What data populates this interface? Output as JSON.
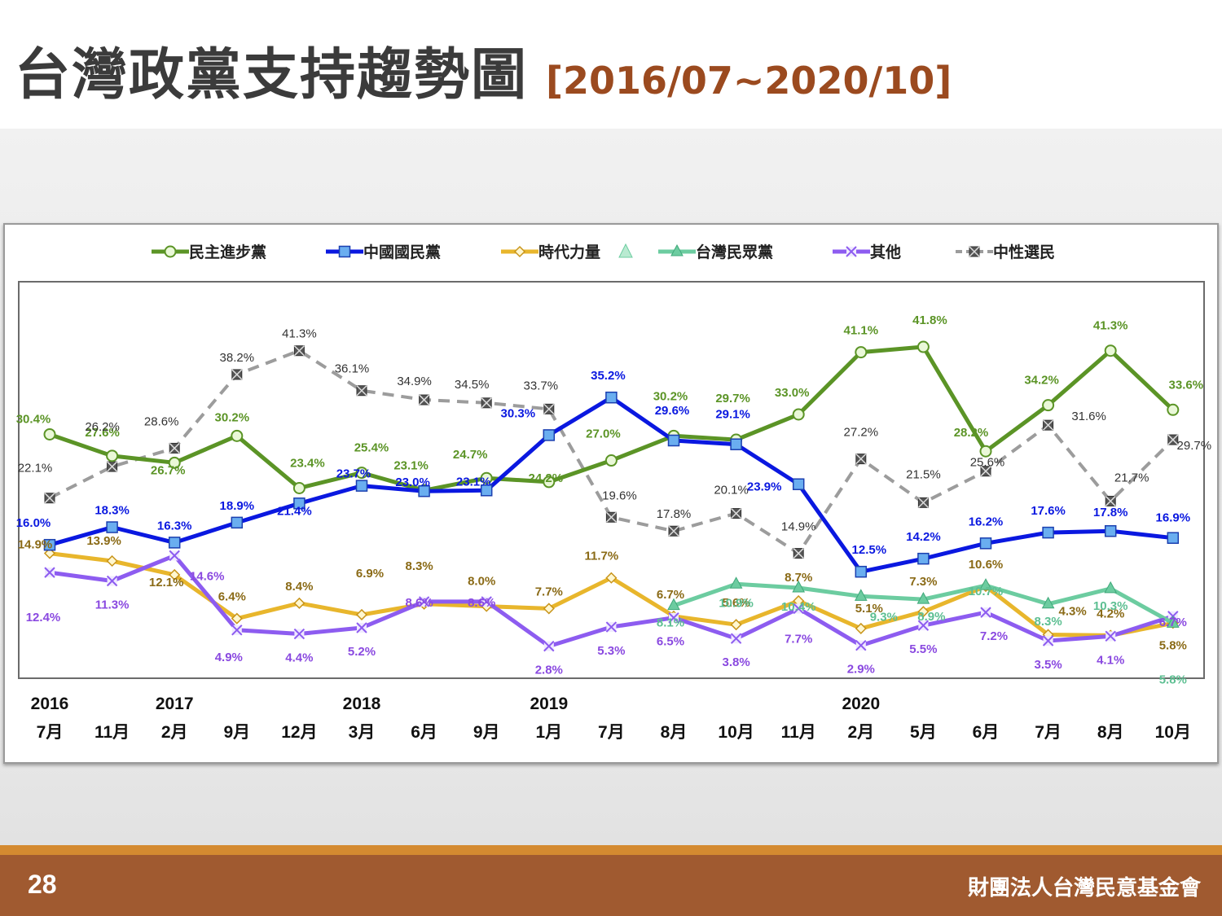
{
  "slide": {
    "title": "台灣政黨支持趨勢圖",
    "title_range": "[2016/07~2020/10]",
    "page_number": "28",
    "organization": "財團法人台灣民意基金會"
  },
  "chart_data": {
    "type": "line",
    "ylim": [
      0,
      47
    ],
    "grid": false,
    "legend_position": "top",
    "year_labels": [
      {
        "index": 0,
        "label": "2016"
      },
      {
        "index": 2,
        "label": "2017"
      },
      {
        "index": 5,
        "label": "2018"
      },
      {
        "index": 8,
        "label": "2019"
      },
      {
        "index": 13,
        "label": "2020"
      }
    ],
    "categories": [
      "7月",
      "11月",
      "2月",
      "9月",
      "12月",
      "3月",
      "6月",
      "9月",
      "1月",
      "7月",
      "8月",
      "10月",
      "11月",
      "2月",
      "5月",
      "6月",
      "7月",
      "8月",
      "10月"
    ],
    "series": [
      {
        "name": "民主進步黨",
        "color": "#5b9426",
        "marker": "circle",
        "dash": false,
        "values": [
          30.4,
          27.6,
          26.7,
          30.2,
          23.4,
          25.4,
          23.1,
          24.7,
          24.2,
          27.0,
          30.2,
          29.7,
          33.0,
          41.1,
          41.8,
          28.2,
          34.2,
          41.3,
          33.6
        ]
      },
      {
        "name": "中國國民黨",
        "color": "#0a18e0",
        "marker": "square",
        "dash": false,
        "values": [
          16.0,
          18.3,
          16.3,
          18.9,
          21.4,
          23.7,
          23.0,
          23.1,
          30.3,
          35.2,
          29.6,
          29.1,
          23.9,
          12.5,
          14.2,
          16.2,
          17.6,
          17.8,
          16.9
        ]
      },
      {
        "name": "時代力量",
        "color": "#e8b62c",
        "marker": "diamond",
        "dash": false,
        "values": [
          14.9,
          13.9,
          12.1,
          6.4,
          8.4,
          6.9,
          8.3,
          8.0,
          7.7,
          11.7,
          6.7,
          5.6,
          8.7,
          5.1,
          7.3,
          10.6,
          4.3,
          4.2,
          5.8
        ]
      },
      {
        "name": "台灣民眾黨",
        "color": "#6ccca0",
        "marker": "triangle",
        "dash": false,
        "values": [
          null,
          null,
          null,
          null,
          null,
          null,
          null,
          null,
          null,
          null,
          8.1,
          10.9,
          10.4,
          9.3,
          8.9,
          10.7,
          8.3,
          10.3,
          5.8
        ]
      },
      {
        "name": "其他",
        "color": "#8d5cf0",
        "marker": "x",
        "dash": false,
        "values": [
          12.4,
          11.3,
          14.6,
          4.9,
          4.4,
          5.2,
          8.6,
          8.6,
          2.8,
          5.3,
          6.5,
          3.8,
          7.7,
          2.9,
          5.5,
          7.2,
          3.5,
          4.1,
          6.7
        ]
      },
      {
        "name": "中性選民",
        "color": "#9c9c9c",
        "marker": "xsquare",
        "dash": true,
        "values": [
          22.1,
          26.2,
          28.6,
          38.2,
          41.3,
          36.1,
          34.9,
          34.5,
          33.7,
          19.6,
          17.8,
          20.1,
          14.9,
          27.2,
          21.5,
          25.6,
          31.6,
          21.7,
          29.7
        ]
      }
    ]
  }
}
